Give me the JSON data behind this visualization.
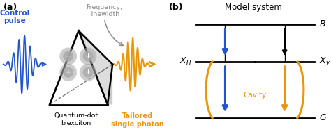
{
  "fig_width": 4.74,
  "fig_height": 1.93,
  "dpi": 100,
  "bg_color": "#ffffff",
  "blue_color": "#2255cc",
  "orange_color": "#e8960a",
  "gray_color": "#888888",
  "black_color": "#000000",
  "panel_a_label": "(a)",
  "panel_b_label": "(b)",
  "title_b": "Model system",
  "label_B": "$B$",
  "label_XH": "$X_H$",
  "label_XV": "$X_v$",
  "label_G": "$G$",
  "label_cavity": "Cavity",
  "label_control": "Control\npulse",
  "label_freq": "Frequency,\nlinewidth",
  "label_qdot": "Quantum-dot\nbiexciton",
  "label_tailored": "Tailored\nsingle photon"
}
